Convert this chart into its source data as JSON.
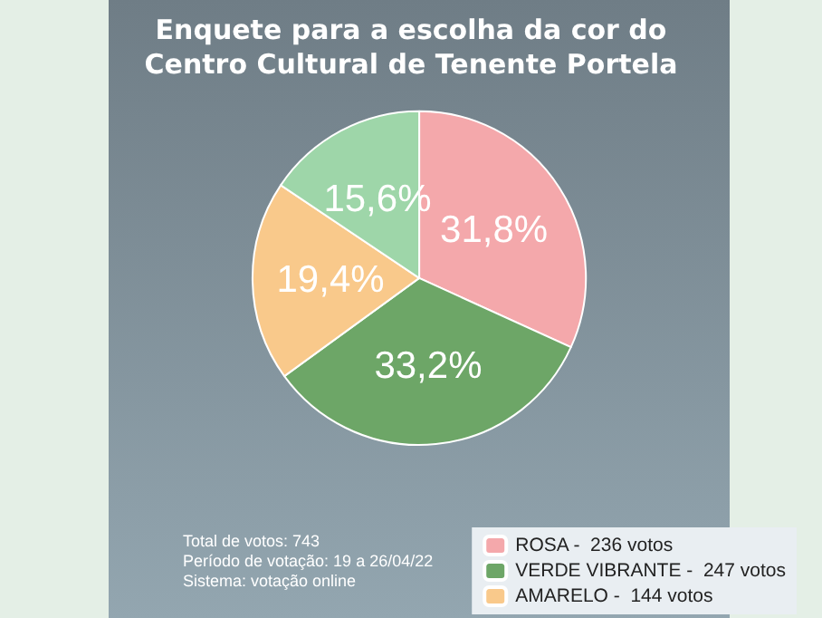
{
  "chart_data": {
    "type": "pie",
    "title": "Enquete para a escolha da cor do\nCentro Cultural de Tenente Portela",
    "categories": [
      "ROSA -  236 votos",
      "VERDE VIBRANTE -  247 votos",
      "AMARELO -  144 votos",
      null
    ],
    "values": [
      31.8,
      33.2,
      19.4,
      15.6
    ],
    "value_labels": [
      "31,8%",
      "33,2%",
      "19,4%",
      "15,6%"
    ],
    "colors": [
      "#f4a8ab",
      "#6da667",
      "#f9c98b",
      "#9ed6a9"
    ],
    "annotations": [
      "Total de votos: 743",
      "Período de votação: 19 a 26/04/22",
      "Sistema: votação online"
    ],
    "legend": "bottom right"
  }
}
